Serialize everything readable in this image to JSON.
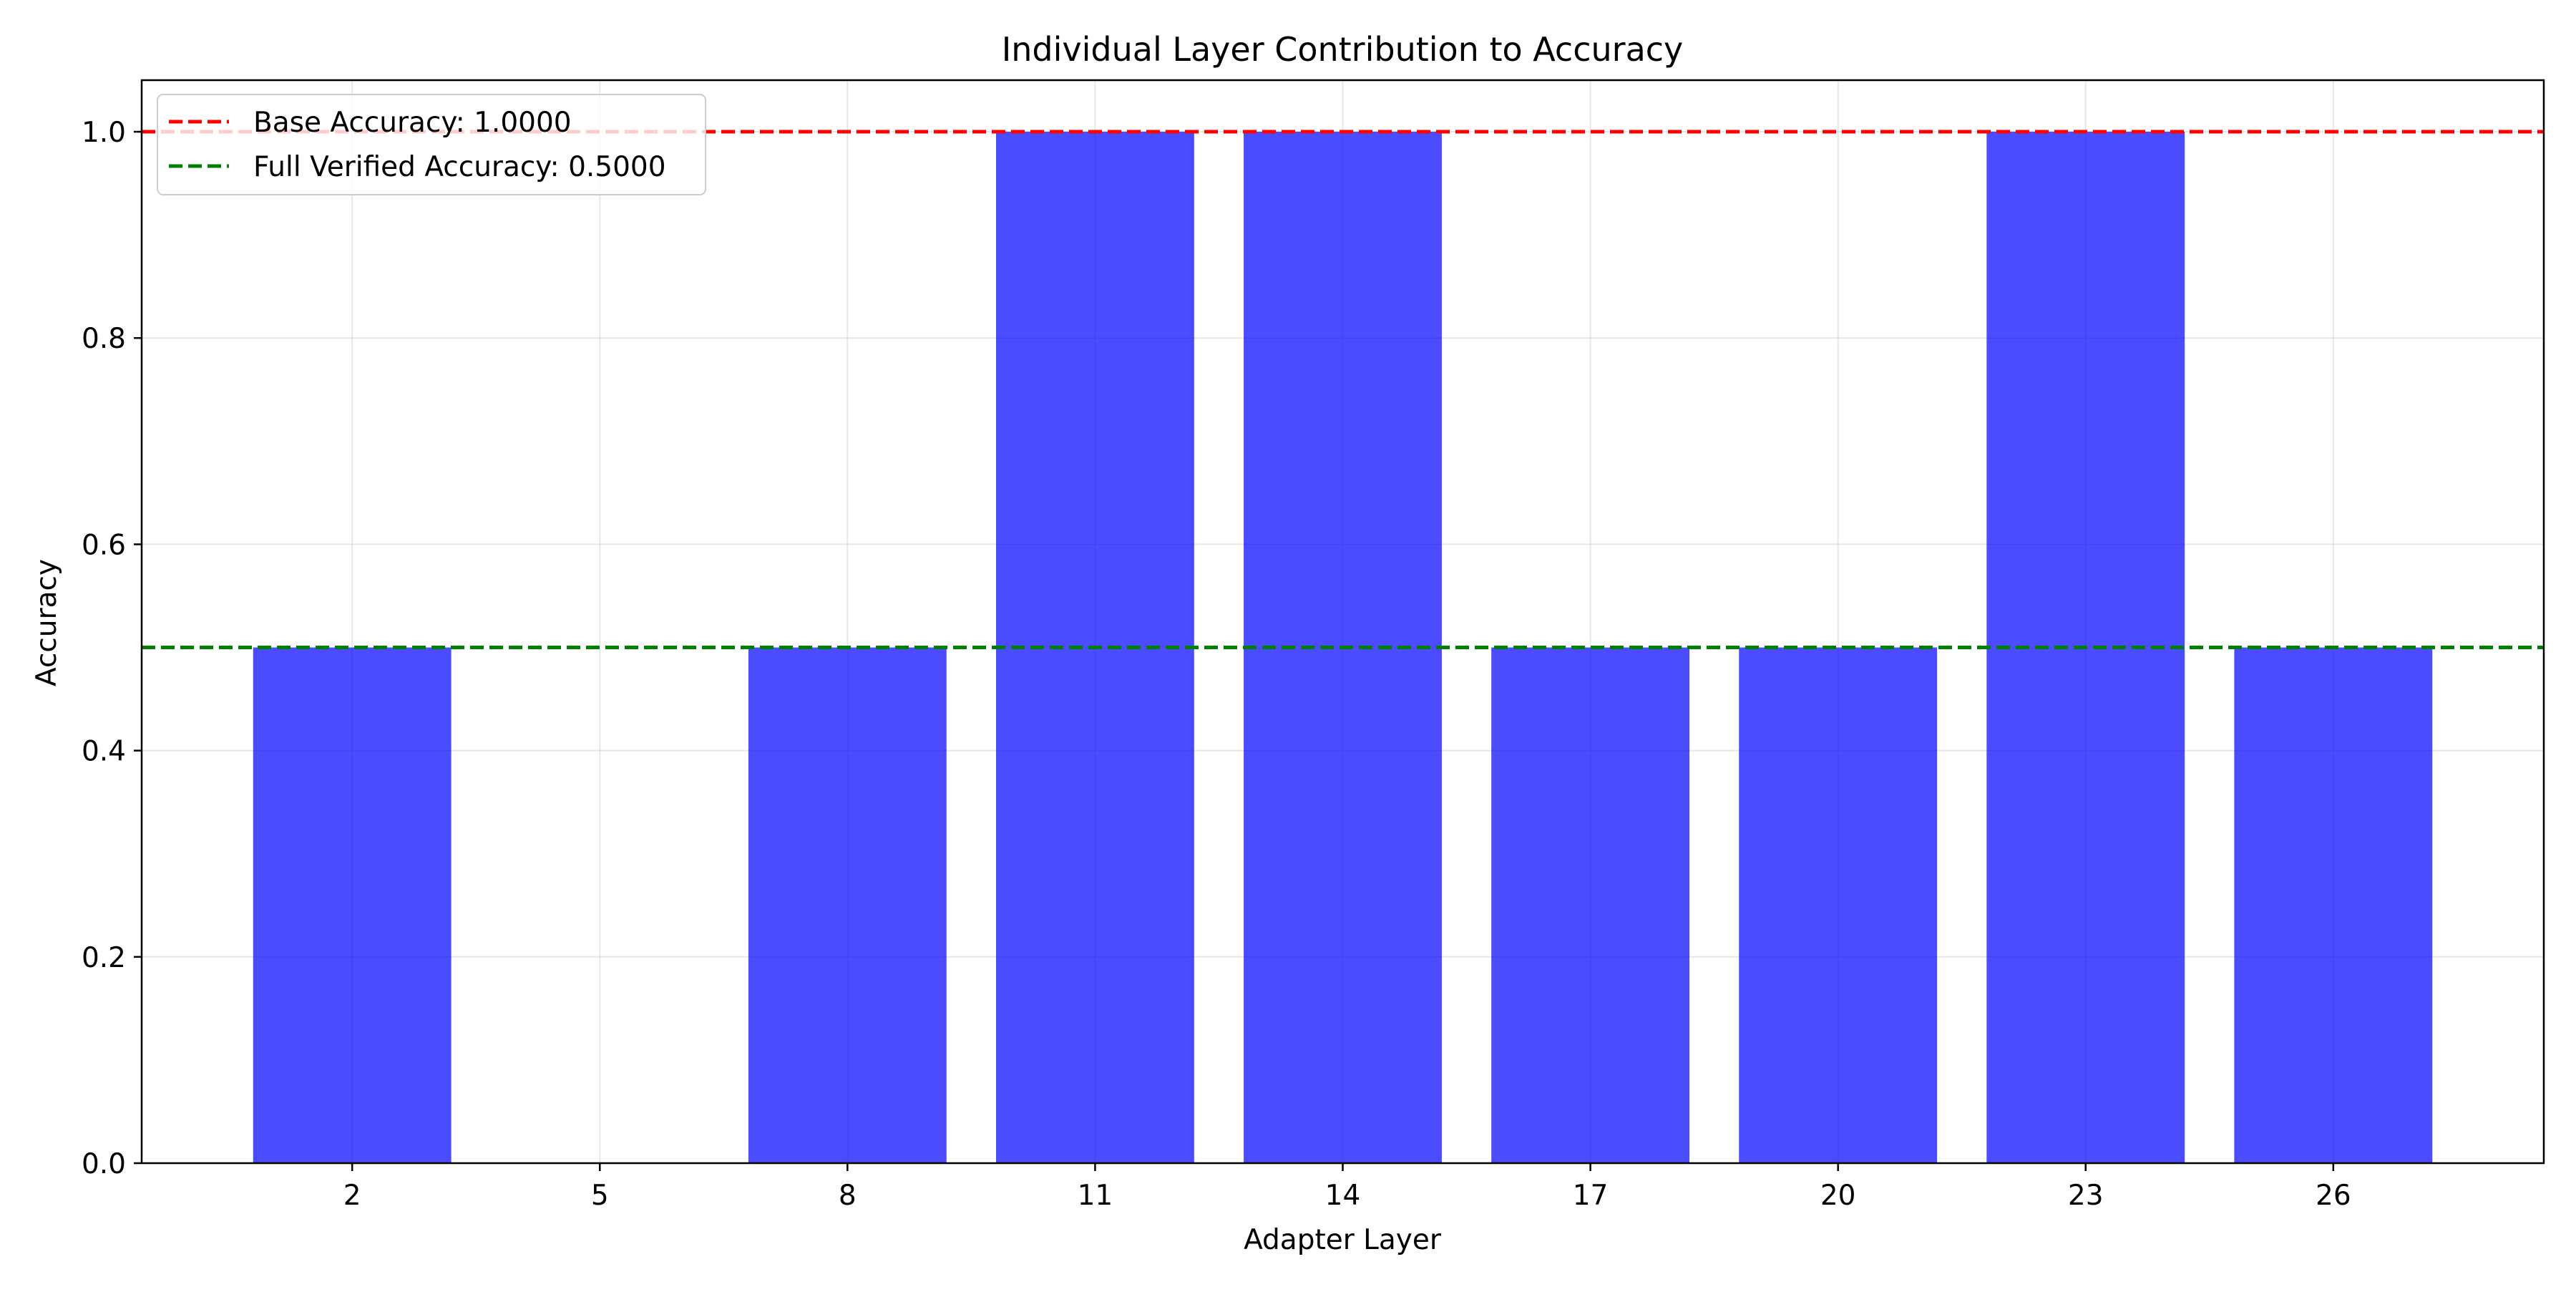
{
  "chart_data": {
    "type": "bar",
    "title": "Individual Layer Contribution to Accuracy",
    "xlabel": "Adapter Layer",
    "ylabel": "Accuracy",
    "categories": [
      2,
      5,
      8,
      11,
      14,
      17,
      20,
      23,
      26
    ],
    "values": [
      0.5,
      0.0,
      0.5,
      1.0,
      1.0,
      0.5,
      0.5,
      1.0,
      0.5
    ],
    "xlim": [
      -0.85,
      8.85
    ],
    "ylim": [
      0.0,
      1.05
    ],
    "yticks": [
      0.0,
      0.2,
      0.4,
      0.6,
      0.8,
      1.0
    ],
    "ytick_labels": [
      "0.0",
      "0.2",
      "0.4",
      "0.6",
      "0.8",
      "1.0"
    ],
    "bar_color": "#0000ff",
    "bar_opacity": 0.7,
    "grid": true,
    "reference_lines": [
      {
        "label": "Base Accuracy: 1.0000",
        "value": 1.0,
        "color": "#ff0000",
        "style": "dashed"
      },
      {
        "label": "Full Verified Accuracy: 0.5000",
        "value": 0.5,
        "color": "#008000",
        "style": "dashed"
      }
    ],
    "legend_position": "upper left"
  }
}
